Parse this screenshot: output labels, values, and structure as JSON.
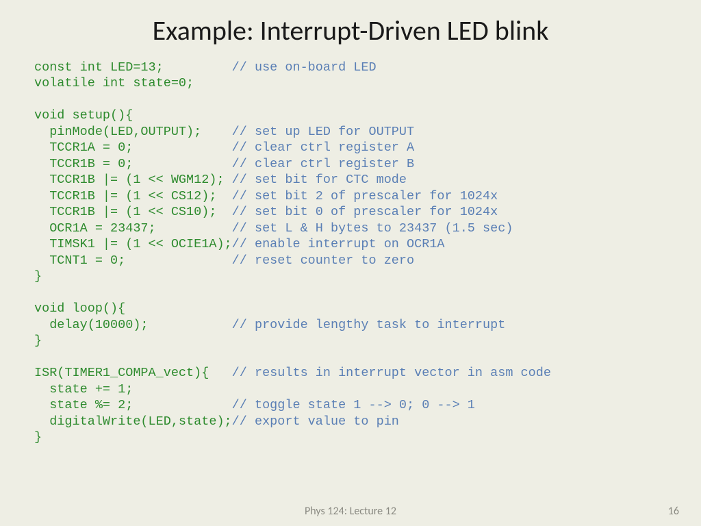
{
  "title": "Example: Interrupt-Driven LED blink",
  "footer": "Phys 124: Lecture 12",
  "page_number": "16",
  "colors": {
    "background": "#eeeee4",
    "title_color": "#1a1a1a",
    "code_color": "#2e8b2e",
    "comment_color": "#5a7fb5",
    "footer_color": "#8a8a82"
  },
  "typography": {
    "title_fontsize": 40,
    "code_fontsize": 18.5,
    "footer_fontsize": 16,
    "code_font": "Courier New",
    "title_font": "Calibri"
  },
  "code_lines": [
    {
      "code": "const int LED=13;         ",
      "comment": "// use on-board LED"
    },
    {
      "code": "volatile int state=0;",
      "comment": ""
    },
    {
      "code": "",
      "comment": ""
    },
    {
      "code": "void setup(){",
      "comment": ""
    },
    {
      "code": "  pinMode(LED,OUTPUT);    ",
      "comment": "// set up LED for OUTPUT"
    },
    {
      "code": "  TCCR1A = 0;             ",
      "comment": "// clear ctrl register A"
    },
    {
      "code": "  TCCR1B = 0;             ",
      "comment": "// clear ctrl register B"
    },
    {
      "code": "  TCCR1B |= (1 << WGM12); ",
      "comment": "// set bit for CTC mode"
    },
    {
      "code": "  TCCR1B |= (1 << CS12);  ",
      "comment": "// set bit 2 of prescaler for 1024x"
    },
    {
      "code": "  TCCR1B |= (1 << CS10);  ",
      "comment": "// set bit 0 of prescaler for 1024x"
    },
    {
      "code": "  OCR1A = 23437;          ",
      "comment": "// set L & H bytes to 23437 (1.5 sec)"
    },
    {
      "code": "  TIMSK1 |= (1 << OCIE1A);",
      "comment": "// enable interrupt on OCR1A"
    },
    {
      "code": "  TCNT1 = 0;              ",
      "comment": "// reset counter to zero"
    },
    {
      "code": "}",
      "comment": ""
    },
    {
      "code": "",
      "comment": ""
    },
    {
      "code": "void loop(){",
      "comment": ""
    },
    {
      "code": "  delay(10000);           ",
      "comment": "// provide lengthy task to interrupt"
    },
    {
      "code": "}",
      "comment": ""
    },
    {
      "code": "",
      "comment": ""
    },
    {
      "code": "ISR(TIMER1_COMPA_vect){   ",
      "comment": "// results in interrupt vector in asm code"
    },
    {
      "code": "  state += 1;",
      "comment": ""
    },
    {
      "code": "  state %= 2;             ",
      "comment": "// toggle state 1 --> 0; 0 --> 1"
    },
    {
      "code": "  digitalWrite(LED,state);",
      "comment": "// export value to pin"
    },
    {
      "code": "}",
      "comment": ""
    }
  ]
}
